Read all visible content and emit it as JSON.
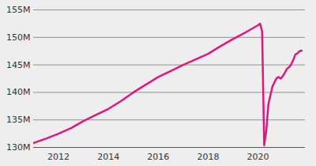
{
  "chart_data": {
    "type": "line",
    "x": [
      2011.0,
      2011.5,
      2012.0,
      2012.5,
      2013.0,
      2013.5,
      2014.0,
      2014.5,
      2015.0,
      2015.5,
      2016.0,
      2016.5,
      2017.0,
      2017.5,
      2018.0,
      2018.5,
      2019.0,
      2019.5,
      2020.0,
      2020.083,
      2020.167,
      2020.25,
      2020.333,
      2020.417,
      2020.5,
      2020.583,
      2020.667,
      2020.75,
      2020.833,
      2020.917,
      2021.0,
      2021.083,
      2021.167,
      2021.25,
      2021.333,
      2021.417,
      2021.5,
      2021.583,
      2021.667,
      2021.75
    ],
    "values": [
      130.8,
      131.6,
      132.5,
      133.5,
      134.8,
      135.9,
      137.0,
      138.4,
      140.0,
      141.4,
      142.8,
      143.9,
      145.0,
      146.0,
      147.0,
      148.4,
      149.7,
      150.9,
      152.2,
      152.5,
      151.1,
      130.4,
      133.0,
      137.8,
      139.5,
      141.1,
      141.9,
      142.6,
      142.8,
      142.5,
      143.0,
      143.6,
      144.3,
      144.6,
      145.1,
      145.9,
      146.9,
      147.1,
      147.5,
      147.6
    ],
    "color": "#e0177d",
    "xlim": [
      2011,
      2021.9
    ],
    "ylim": [
      130,
      155
    ],
    "xticks": [
      2012,
      2014,
      2016,
      2018,
      2020
    ],
    "yticks": [
      {
        "value": 130,
        "label": "130M"
      },
      {
        "value": 135,
        "label": "135M"
      },
      {
        "value": 140,
        "label": "140M"
      },
      {
        "value": 145,
        "label": "145M"
      },
      {
        "value": 150,
        "label": "150M"
      },
      {
        "value": 155,
        "label": "155M"
      }
    ],
    "grid": true
  }
}
